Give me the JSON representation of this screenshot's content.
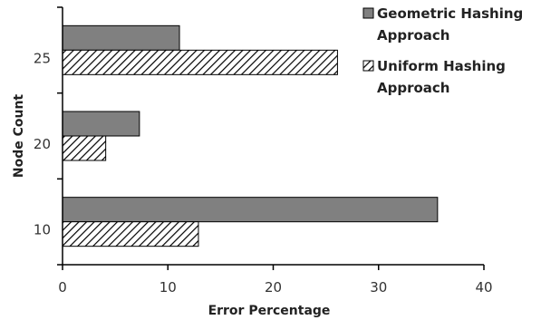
{
  "chart_data": {
    "type": "bar",
    "orientation": "horizontal",
    "categories": [
      "10",
      "20",
      "25"
    ],
    "series": [
      {
        "name": "Geometric Hashing Approach",
        "legend_lines": [
          "Geometric Hashing",
          "Approach"
        ],
        "values": [
          35.6,
          7.3,
          11.1
        ],
        "fill": "solid",
        "color": "#808080"
      },
      {
        "name": "Uniform Hashing Approach",
        "legend_lines": [
          "Uniform Hashing",
          "Approach"
        ],
        "values": [
          12.9,
          4.1,
          26.1
        ],
        "fill": "diagonal-hatch",
        "color": "#000000"
      }
    ],
    "xlabel": "Error Percentage",
    "ylabel": "Node Count",
    "xlim": [
      0,
      40
    ],
    "xticks": [
      "0",
      "10",
      "20",
      "30",
      "40"
    ],
    "grid": false,
    "legend_position": "top-right"
  }
}
